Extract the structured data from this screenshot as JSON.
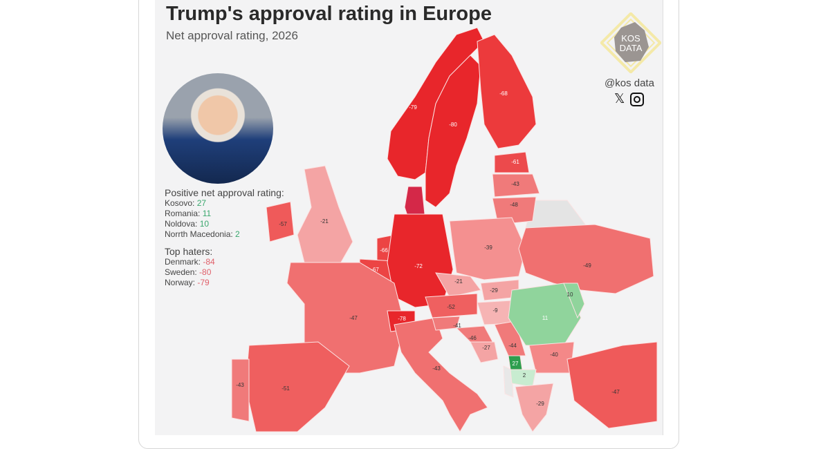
{
  "title": "Trump's approval rating in Europe",
  "subtitle": "Net approval rating, 2026",
  "brand": {
    "logo_text": "KOS DATA",
    "handle": "@kos data",
    "social_icons": [
      "x-icon",
      "instagram-icon"
    ]
  },
  "colors": {
    "strong_negative": "#e8262b",
    "negative": "#ef6060",
    "mild_negative": "#f4a4a4",
    "positive": "#90d49c",
    "strong_positive": "#2e9e4e",
    "no_data": "#e4e4e4"
  },
  "legend": {
    "positive_heading": "Positive net approval rating:",
    "positive": [
      {
        "label": "Kosovo: ",
        "value": "27"
      },
      {
        "label": "Romania: ",
        "value": "11"
      },
      {
        "label": "Noldova: ",
        "value": "10"
      },
      {
        "label": "Norrth Macedonia: ",
        "value": "2"
      }
    ],
    "haters_heading": "Top haters:",
    "haters": [
      {
        "label": "Denmark: ",
        "value": "-84"
      },
      {
        "label": "Sweden: ",
        "value": "-80"
      },
      {
        "label": "Norway: ",
        "value": "-79"
      }
    ]
  },
  "map_values": {
    "norway": "-79",
    "sweden": "-80",
    "finland": "-68",
    "denmark": "-84",
    "estonia": "-61",
    "latvia": "-43",
    "lithuania": "-48",
    "ireland": "-57",
    "uk": "-21",
    "netherlands": "-66",
    "belgium": "-67",
    "germany": "-72",
    "france": "-47",
    "switzerland": "-78",
    "spain": "-51",
    "portugal": "-43",
    "italy": "-43",
    "poland": "-39",
    "ukraine": "-49",
    "czechia": "-21",
    "slovakia": "-29",
    "austria": "-52",
    "hungary": "-9",
    "slovenia": "-41",
    "croatia": "-46",
    "bosnia": "-27",
    "serbia": "-44",
    "romania": "11",
    "moldova": "10",
    "bulgaria": "-40",
    "kosovo": "27",
    "north_macedonia": "2",
    "greece": "-29",
    "turkey": "-47"
  }
}
